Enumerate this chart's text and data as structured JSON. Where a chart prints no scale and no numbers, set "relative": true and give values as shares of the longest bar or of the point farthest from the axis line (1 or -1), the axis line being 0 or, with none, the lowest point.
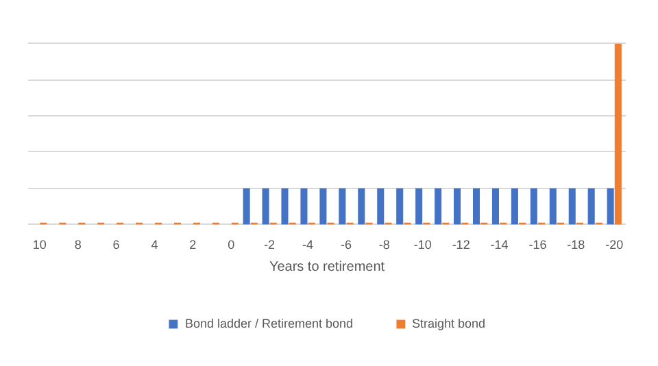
{
  "chart_data": {
    "type": "bar",
    "relative": true,
    "xlabel": "Years to retirement",
    "grid": "y",
    "legend": "bottom",
    "categories": [
      "10",
      null,
      "8",
      null,
      "6",
      null,
      "4",
      null,
      "2",
      null,
      "0",
      null,
      "-2",
      null,
      "-4",
      null,
      "-6",
      null,
      "-8",
      null,
      "-10",
      null,
      "-12",
      null,
      "-14",
      null,
      "-16",
      null,
      "-18",
      null,
      "-20"
    ],
    "series": [
      {
        "name": "Bond ladder / Retirement bond",
        "color": "#4472c4",
        "values": [
          null,
          null,
          null,
          null,
          null,
          null,
          null,
          null,
          null,
          null,
          null,
          0.2,
          0.2,
          0.2,
          0.2,
          0.2,
          0.2,
          0.2,
          0.2,
          0.2,
          0.2,
          0.2,
          0.2,
          0.2,
          0.2,
          0.2,
          0.2,
          0.2,
          0.2,
          0.2,
          0.2
        ]
      },
      {
        "name": "Straight bond",
        "color": "#ed7d31",
        "values": [
          0.01,
          0.01,
          0.01,
          0.01,
          0.01,
          0.01,
          0.01,
          0.01,
          0.01,
          0.01,
          0.01,
          0.01,
          0.01,
          0.01,
          0.01,
          0.01,
          0.01,
          0.01,
          0.01,
          0.01,
          0.01,
          0.01,
          0.01,
          0.01,
          0.01,
          0.01,
          0.01,
          0.01,
          0.01,
          0.01,
          1
        ]
      }
    ]
  }
}
